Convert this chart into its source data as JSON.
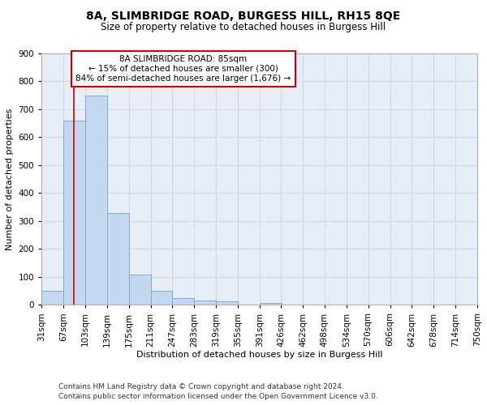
{
  "title1": "8A, SLIMBRIDGE ROAD, BURGESS HILL, RH15 8QE",
  "title2": "Size of property relative to detached houses in Burgess Hill",
  "xlabel": "Distribution of detached houses by size in Burgess Hill",
  "ylabel": "Number of detached properties",
  "bin_labels": [
    "31sqm",
    "67sqm",
    "103sqm",
    "139sqm",
    "175sqm",
    "211sqm",
    "247sqm",
    "283sqm",
    "319sqm",
    "355sqm",
    "391sqm",
    "426sqm",
    "462sqm",
    "498sqm",
    "534sqm",
    "570sqm",
    "606sqm",
    "642sqm",
    "678sqm",
    "714sqm",
    "750sqm"
  ],
  "bin_edges": [
    31,
    67,
    103,
    139,
    175,
    211,
    247,
    283,
    319,
    355,
    391,
    426,
    462,
    498,
    534,
    570,
    606,
    642,
    678,
    714,
    750
  ],
  "bar_heights": [
    50,
    660,
    748,
    330,
    107,
    50,
    25,
    15,
    12,
    0,
    8,
    0,
    0,
    0,
    0,
    0,
    0,
    0,
    0,
    0
  ],
  "bar_color": "#c5d8f0",
  "bar_edge_color": "#7aacd6",
  "grid_color": "#d0d8e8",
  "bg_color": "#e8eef8",
  "red_line_x": 85,
  "red_line_color": "#cc0000",
  "annotation_line1": "8A SLIMBRIDGE ROAD: 85sqm",
  "annotation_line2": "← 15% of detached houses are smaller (300)",
  "annotation_line3": "84% of semi-detached houses are larger (1,676) →",
  "annotation_box_color": "#cc0000",
  "ylim": [
    0,
    900
  ],
  "yticks": [
    0,
    100,
    200,
    300,
    400,
    500,
    600,
    700,
    800,
    900
  ],
  "footer1": "Contains HM Land Registry data © Crown copyright and database right 2024.",
  "footer2": "Contains public sector information licensed under the Open Government Licence v3.0.",
  "title1_fontsize": 10,
  "title2_fontsize": 8.5,
  "axis_label_fontsize": 8,
  "tick_fontsize": 7.5,
  "footer_fontsize": 6.5,
  "ann_fontsize": 7.5
}
